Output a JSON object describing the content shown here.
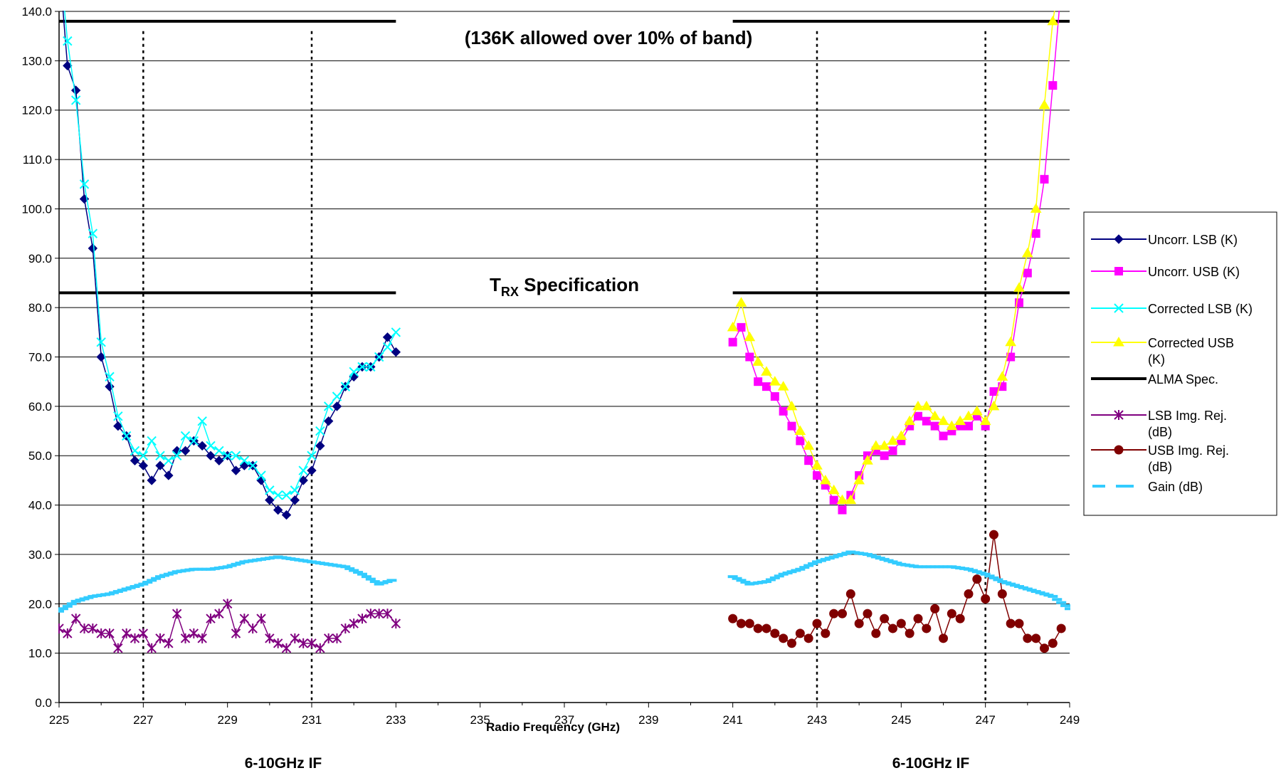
{
  "chart_data": {
    "type": "line",
    "xlabel": "Radio Frequency (GHz)",
    "ylabel": "",
    "xlim": [
      225,
      249
    ],
    "ylim": [
      0,
      140
    ],
    "x_ticks": [
      225,
      227,
      229,
      231,
      233,
      235,
      237,
      239,
      241,
      243,
      245,
      247,
      249
    ],
    "y_ticks": [
      0,
      10,
      20,
      30,
      40,
      50,
      60,
      70,
      80,
      90,
      100,
      110,
      120,
      130,
      140
    ],
    "y_tick_labels": [
      "0.0",
      "10.0",
      "20.0",
      "30.0",
      "40.0",
      "50.0",
      "60.0",
      "70.0",
      "80.0",
      "90.0",
      "100.0",
      "110.0",
      "120.0",
      "130.0",
      "140.0"
    ],
    "grid": "horizontal",
    "legend_position": "right",
    "annotations": {
      "band_note": "(136K allowed over 10% of band)",
      "spec_label_main": "T",
      "spec_label_sub": "RX",
      "spec_label_rest": " Specification",
      "if_label_left": "6-10GHz IF",
      "if_label_right": "6-10GHz IF"
    },
    "if_band_markers": [
      227,
      231,
      243,
      247
    ],
    "spec_lines": [
      {
        "value": 138,
        "ranges": [
          [
            225,
            233
          ],
          [
            241,
            249
          ]
        ]
      },
      {
        "value": 83,
        "ranges": [
          [
            225,
            233
          ],
          [
            241,
            249
          ]
        ]
      }
    ],
    "series": [
      {
        "name": "Uncorr. LSB (K)",
        "color": "#000080",
        "marker": "diamond",
        "x": [
          225.0,
          225.2,
          225.4,
          225.6,
          225.8,
          226.0,
          226.2,
          226.4,
          226.6,
          226.8,
          227.0,
          227.2,
          227.4,
          227.6,
          227.8,
          228.0,
          228.2,
          228.4,
          228.6,
          228.8,
          229.0,
          229.2,
          229.4,
          229.6,
          229.8,
          230.0,
          230.2,
          230.4,
          230.6,
          230.8,
          231.0,
          231.2,
          231.4,
          231.6,
          231.8,
          232.0,
          232.2,
          232.4,
          232.6,
          232.8,
          233.0
        ],
        "y": [
          150,
          129,
          124,
          102,
          92,
          70,
          64,
          56,
          54,
          49,
          48,
          45,
          48,
          46,
          51,
          51,
          53,
          52,
          50,
          49,
          50,
          47,
          48,
          48,
          45,
          41,
          39,
          38,
          41,
          45,
          47,
          52,
          57,
          60,
          64,
          66,
          68,
          68,
          70,
          74,
          71
        ]
      },
      {
        "name": "Uncorr. USB (K)",
        "color": "#ff00ff",
        "marker": "square",
        "x": [
          241.0,
          241.2,
          241.4,
          241.6,
          241.8,
          242.0,
          242.2,
          242.4,
          242.6,
          242.8,
          243.0,
          243.2,
          243.4,
          243.6,
          243.8,
          244.0,
          244.2,
          244.4,
          244.6,
          244.8,
          245.0,
          245.2,
          245.4,
          245.6,
          245.8,
          246.0,
          246.2,
          246.4,
          246.6,
          246.8,
          247.0,
          247.2,
          247.4,
          247.6,
          247.8,
          248.0,
          248.2,
          248.4,
          248.6,
          248.8
        ],
        "y": [
          73,
          76,
          70,
          65,
          64,
          62,
          59,
          56,
          53,
          49,
          46,
          44,
          41,
          39,
          42,
          46,
          50,
          51,
          50,
          51,
          53,
          56,
          58,
          57,
          56,
          54,
          55,
          56,
          56,
          58,
          56,
          63,
          64,
          70,
          81,
          87,
          95,
          106,
          125,
          145
        ]
      },
      {
        "name": "Corrected LSB (K)",
        "color": "#00ffff",
        "marker": "x",
        "x": [
          225.0,
          225.2,
          225.4,
          225.6,
          225.8,
          226.0,
          226.2,
          226.4,
          226.6,
          226.8,
          227.0,
          227.2,
          227.4,
          227.6,
          227.8,
          228.0,
          228.2,
          228.4,
          228.6,
          228.8,
          229.0,
          229.2,
          229.4,
          229.6,
          229.8,
          230.0,
          230.2,
          230.4,
          230.6,
          230.8,
          231.0,
          231.2,
          231.4,
          231.6,
          231.8,
          232.0,
          232.2,
          232.4,
          232.6,
          232.8,
          233.0
        ],
        "y": [
          152,
          134,
          122,
          105,
          95,
          73,
          66,
          58,
          54,
          51,
          50,
          53,
          50,
          49,
          50,
          54,
          53,
          57,
          52,
          51,
          50,
          50,
          49,
          48,
          46,
          43,
          42,
          42,
          43,
          47,
          50,
          55,
          60,
          62,
          64,
          67,
          68,
          68,
          70,
          72,
          75
        ]
      },
      {
        "name": "Corrected USB (K)",
        "color": "#ffff00",
        "marker": "triangle",
        "x": [
          241.0,
          241.2,
          241.4,
          241.6,
          241.8,
          242.0,
          242.2,
          242.4,
          242.6,
          242.8,
          243.0,
          243.2,
          243.4,
          243.6,
          243.8,
          244.0,
          244.2,
          244.4,
          244.6,
          244.8,
          245.0,
          245.2,
          245.4,
          245.6,
          245.8,
          246.0,
          246.2,
          246.4,
          246.6,
          246.8,
          247.0,
          247.2,
          247.4,
          247.6,
          247.8,
          248.0,
          248.2,
          248.4,
          248.6,
          248.8
        ],
        "y": [
          76,
          81,
          74,
          69,
          67,
          65,
          64,
          60,
          55,
          52,
          48,
          45,
          43,
          41,
          41,
          45,
          49,
          52,
          52,
          53,
          54,
          57,
          60,
          60,
          58,
          57,
          56,
          57,
          58,
          59,
          57,
          60,
          66,
          73,
          84,
          91,
          100,
          121,
          138,
          148
        ]
      },
      {
        "name": "ALMA Spec.",
        "color": "#000000",
        "marker": "none",
        "x": [],
        "y": []
      },
      {
        "name": "LSB Img. Rej. (dB)",
        "color": "#800080",
        "marker": "asterisk",
        "x": [
          225.0,
          225.2,
          225.4,
          225.6,
          225.8,
          226.0,
          226.2,
          226.4,
          226.6,
          226.8,
          227.0,
          227.2,
          227.4,
          227.6,
          227.8,
          228.0,
          228.2,
          228.4,
          228.6,
          228.8,
          229.0,
          229.2,
          229.4,
          229.6,
          229.8,
          230.0,
          230.2,
          230.4,
          230.6,
          230.8,
          231.0,
          231.2,
          231.4,
          231.6,
          231.8,
          232.0,
          232.2,
          232.4,
          232.6,
          232.8,
          233.0
        ],
        "y": [
          15,
          14,
          17,
          15,
          15,
          14,
          14,
          11,
          14,
          13,
          14,
          11,
          13,
          12,
          18,
          13,
          14,
          13,
          17,
          18,
          20,
          14,
          17,
          15,
          17,
          13,
          12,
          11,
          13,
          12,
          12,
          11,
          13,
          13,
          15,
          16,
          17,
          18,
          18,
          18,
          16
        ]
      },
      {
        "name": "USB Img. Rej. (dB)",
        "color": "#800000",
        "marker": "circle",
        "x": [
          241.0,
          241.2,
          241.4,
          241.6,
          241.8,
          242.0,
          242.2,
          242.4,
          242.6,
          242.8,
          243.0,
          243.2,
          243.4,
          243.6,
          243.8,
          244.0,
          244.2,
          244.4,
          244.6,
          244.8,
          245.0,
          245.2,
          245.4,
          245.6,
          245.8,
          246.0,
          246.2,
          246.4,
          246.6,
          246.8,
          247.0,
          247.2,
          247.4,
          247.6,
          247.8,
          248.0,
          248.2,
          248.4,
          248.6,
          248.8
        ],
        "y": [
          17,
          16,
          16,
          15,
          15,
          14,
          13,
          12,
          14,
          13,
          16,
          14,
          18,
          18,
          22,
          16,
          18,
          14,
          17,
          15,
          16,
          14,
          17,
          15,
          19,
          13,
          18,
          17,
          22,
          25,
          21,
          34,
          22,
          16,
          16,
          13,
          13,
          11,
          12,
          15
        ]
      },
      {
        "name": "Gain (dB)",
        "color": "#33ccff",
        "marker": "dash",
        "x": [
          225.0,
          225.4,
          225.8,
          226.2,
          226.6,
          227.0,
          227.4,
          227.8,
          228.2,
          228.6,
          229.0,
          229.4,
          229.8,
          230.2,
          230.6,
          231.0,
          231.4,
          231.8,
          232.2,
          232.6,
          233.0,
          241.0,
          241.4,
          241.8,
          242.2,
          242.6,
          243.0,
          243.4,
          243.8,
          244.2,
          244.6,
          245.0,
          245.4,
          245.8,
          246.2,
          246.6,
          247.0,
          247.4,
          247.8,
          248.2,
          248.6,
          249.0
        ],
        "y": [
          18.5,
          20.5,
          21.5,
          22,
          23,
          24,
          25.5,
          26.5,
          27,
          27,
          27.5,
          28.5,
          29,
          29.5,
          29,
          28.5,
          28,
          27.5,
          26,
          24,
          25,
          25.5,
          24,
          24.5,
          26,
          27,
          28.5,
          29.5,
          30.5,
          30,
          29,
          28,
          27.5,
          27.5,
          27.5,
          27,
          26,
          24.5,
          23.5,
          22.5,
          21.5,
          19
        ]
      }
    ],
    "legend_labels": [
      [
        "Uncorr. LSB (K)"
      ],
      [
        "Uncorr. USB (K)"
      ],
      [
        "Corrected LSB (K)"
      ],
      [
        "Corrected USB",
        "(K)"
      ],
      [
        "ALMA Spec."
      ],
      [
        "LSB Img. Rej.",
        "(dB)"
      ],
      [
        "USB Img. Rej.",
        "(dB)"
      ],
      [
        "Gain (dB)"
      ]
    ]
  }
}
